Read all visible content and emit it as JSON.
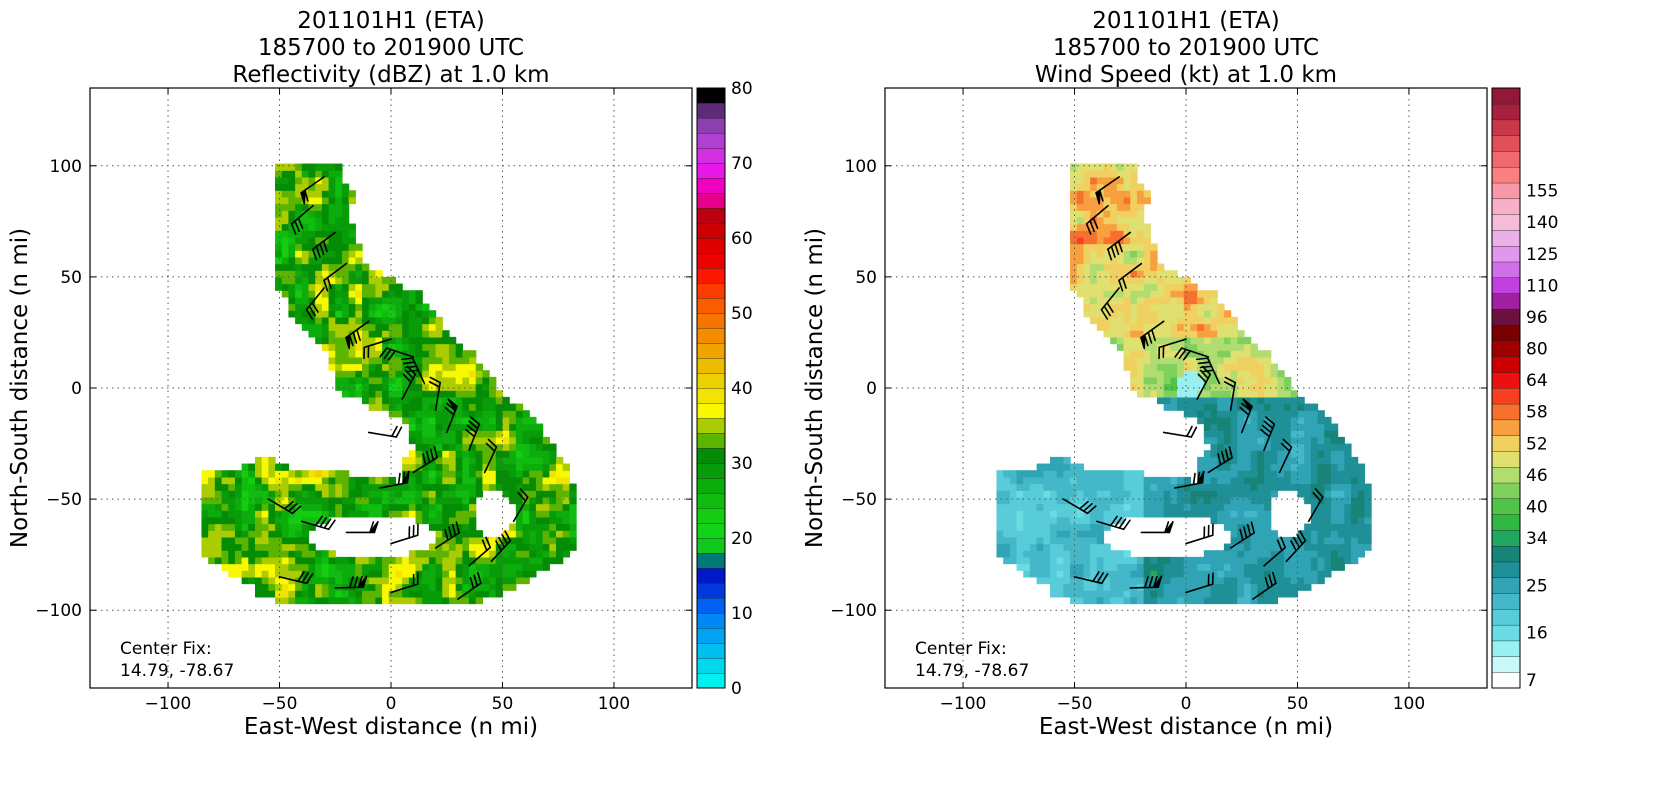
{
  "chart_data": [
    {
      "type": "heatmap",
      "title_lines": [
        "201101H1 (ETA)",
        "185700 to 201900 UTC",
        "Reflectivity (dBZ) at 1.0 km"
      ],
      "xlabel": "East-West distance (n mi)",
      "ylabel": "North-South distance (n mi)",
      "xlim": [
        -135,
        135
      ],
      "ylim": [
        -135,
        135
      ],
      "xticks": [
        -100,
        -50,
        0,
        50,
        100
      ],
      "yticks": [
        -100,
        -50,
        0,
        50,
        100
      ],
      "grid": true,
      "annotation": [
        "Center Fix:",
        "14.79, -78.67"
      ],
      "field": "reflectivity",
      "colorbar": {
        "min": 0,
        "max": 80,
        "ticks": [
          0,
          10,
          20,
          30,
          40,
          50,
          60,
          70,
          80
        ],
        "colors": [
          "#00f0f0",
          "#00d8ee",
          "#00bff0",
          "#00a4f2",
          "#0088f4",
          "#0060f0",
          "#0038e0",
          "#0018c8",
          "#007878",
          "#10c81e",
          "#10d418",
          "#14cc10",
          "#10bc10",
          "#0cac0c",
          "#089c08",
          "#048c04",
          "#5cb400",
          "#aacc00",
          "#f8f800",
          "#f0e400",
          "#ecd000",
          "#ecbc00",
          "#f0a400",
          "#f48c00",
          "#f87400",
          "#fc5c00",
          "#fc3c00",
          "#fc1800",
          "#ec0000",
          "#dc0000",
          "#cc0000",
          "#bc0010",
          "#e40088",
          "#f000c0",
          "#e818e8",
          "#d030e0",
          "#b040d0",
          "#8c40b0",
          "#5c2c78",
          "#000000"
        ]
      }
    },
    {
      "type": "heatmap",
      "title_lines": [
        "201101H1 (ETA)",
        "185700 to 201900 UTC",
        "Wind Speed (kt) at 1.0 km"
      ],
      "xlabel": "East-West distance (n mi)",
      "ylabel": "North-South distance (n mi)",
      "xlim": [
        -135,
        135
      ],
      "ylim": [
        -135,
        135
      ],
      "xticks": [
        -100,
        -50,
        0,
        50,
        100
      ],
      "yticks": [
        -100,
        -50,
        0,
        50,
        100
      ],
      "grid": true,
      "annotation": [
        "Center Fix:",
        "14.79, -78.67"
      ],
      "field": "wind_speed",
      "colorbar": {
        "labels": [
          "7",
          "16",
          "25",
          "34",
          "40",
          "46",
          "52",
          "58",
          "64",
          "80",
          "96",
          "110",
          "125",
          "140",
          "155"
        ],
        "label_positions": [
          0,
          3,
          6,
          9,
          11,
          13,
          15,
          17,
          19,
          21,
          23,
          25,
          27,
          29,
          31
        ],
        "colors": [
          "#ffffff",
          "#c8f8f8",
          "#98f0f0",
          "#6cdce4",
          "#58ccd8",
          "#44b8c8",
          "#30a4b4",
          "#209098",
          "#188478",
          "#20a860",
          "#30b840",
          "#50c448",
          "#80d060",
          "#b0dc70",
          "#e0e070",
          "#f0d060",
          "#f8a040",
          "#f87030",
          "#f84020",
          "#ee1010",
          "#cc0000",
          "#a00000",
          "#780000",
          "#6c1040",
          "#a020a0",
          "#c040e0",
          "#d070e8",
          "#e098ee",
          "#ecb0e8",
          "#f4bcd8",
          "#f8b0c8",
          "#f898a8",
          "#f88080",
          "#f06870",
          "#e05058",
          "#c83848",
          "#a82040",
          "#901838"
        ]
      }
    }
  ]
}
